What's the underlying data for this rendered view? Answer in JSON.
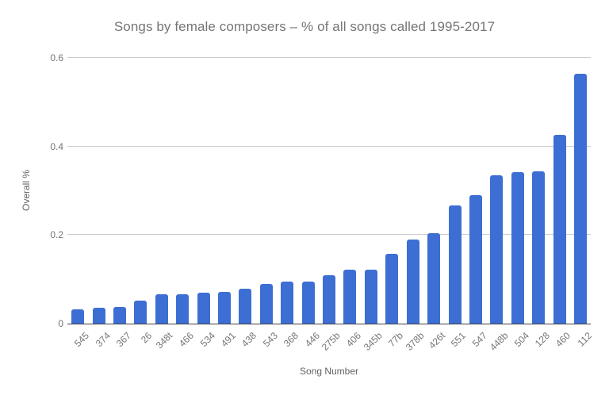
{
  "chart_data": {
    "type": "bar",
    "title": "Songs by female composers – % of all songs called 1995-2017",
    "xlabel": "Song Number",
    "ylabel": "Overall %",
    "categories": [
      "545",
      "374",
      "367",
      "26",
      "348t",
      "466",
      "534",
      "491",
      "438",
      "543",
      "368",
      "446",
      "275b",
      "406",
      "345b",
      "77b",
      "378b",
      "426t",
      "551",
      "547",
      "448b",
      "504",
      "128",
      "460",
      "112"
    ],
    "values": [
      0.032,
      0.036,
      0.038,
      0.052,
      0.066,
      0.067,
      0.07,
      0.072,
      0.078,
      0.09,
      0.095,
      0.095,
      0.11,
      0.122,
      0.122,
      0.157,
      0.19,
      0.205,
      0.267,
      0.29,
      0.335,
      0.342,
      0.344,
      0.426,
      0.564
    ],
    "ylim": [
      0,
      0.6
    ],
    "yticks": [
      0,
      0.2,
      0.4,
      0.6
    ],
    "ytick_labels": [
      "0",
      "0.2",
      "0.4",
      "0.6"
    ],
    "grid": true,
    "legend_position": "none",
    "bar_color": "#3d6ed3",
    "gridline_color": "#cccccc",
    "axis_line_color": "#424242",
    "text_color": "#757575"
  }
}
